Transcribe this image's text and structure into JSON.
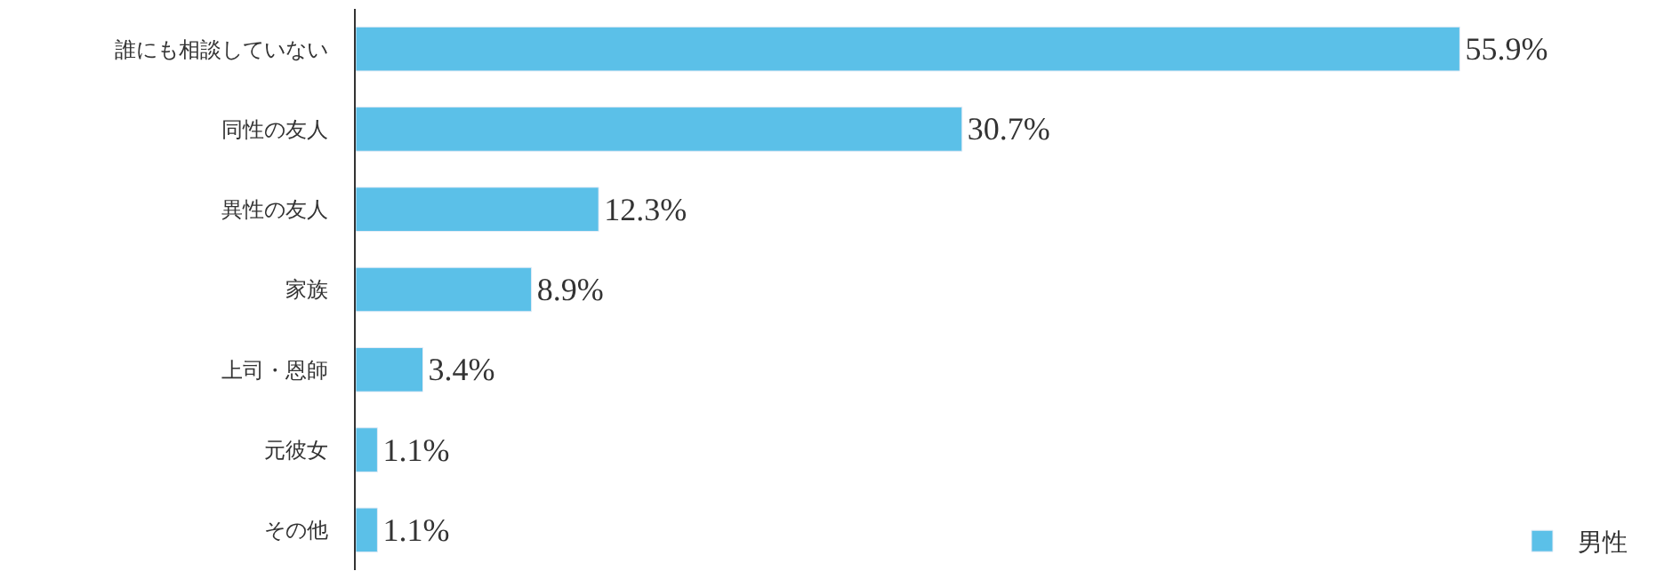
{
  "chart_data": {
    "type": "bar",
    "orientation": "horizontal",
    "categories": [
      "誰にも相談していない",
      "同性の友人",
      "異性の友人",
      "家族",
      "上司・恩師",
      "元彼女",
      "その他"
    ],
    "series": [
      {
        "name": "男性",
        "color": "#5bc0e8",
        "values": [
          55.9,
          30.7,
          12.3,
          8.9,
          3.4,
          1.1,
          1.1
        ],
        "value_labels": [
          "55.9%",
          "30.7%",
          "12.3%",
          "8.9%",
          "3.4%",
          "1.1%",
          "1.1%"
        ]
      }
    ],
    "legend": "bottom right"
  }
}
